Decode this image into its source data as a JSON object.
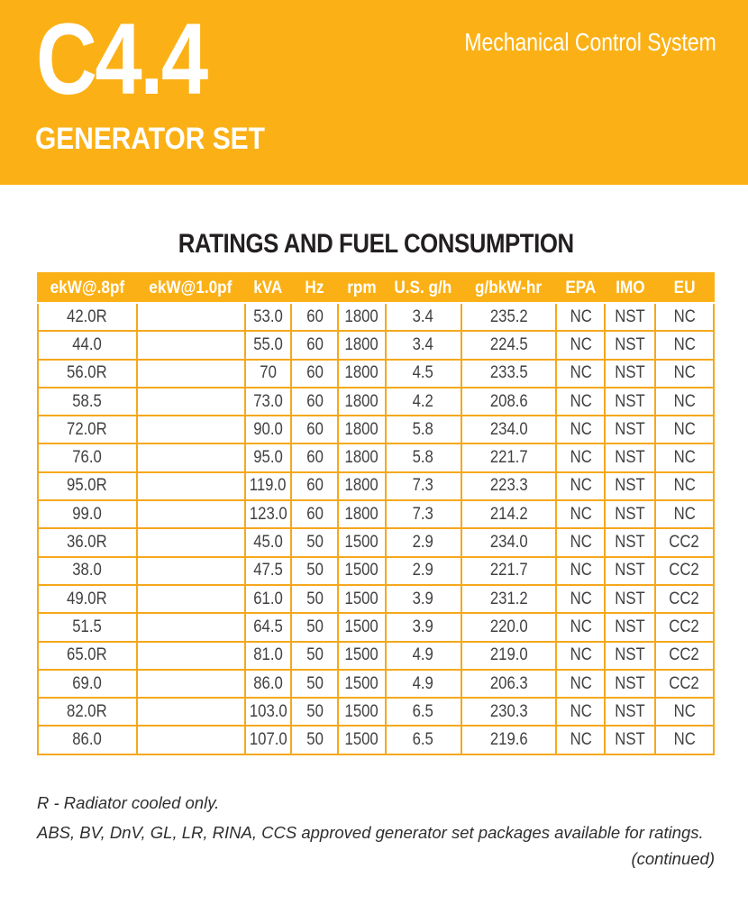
{
  "header": {
    "model": "C4.4",
    "subtitle": "GENERATOR SET",
    "tagline": "Mechanical Control System"
  },
  "section": {
    "title": "RATINGS AND FUEL CONSUMPTION"
  },
  "table": {
    "columns": [
      "ekW@.8pf",
      "ekW@1.0pf",
      "kVA",
      "Hz",
      "rpm",
      "U.S. g/h",
      "g/bkW-hr",
      "EPA",
      "IMO",
      "EU"
    ],
    "rows": [
      [
        "42.0R",
        "",
        "53.0",
        "60",
        "1800",
        "3.4",
        "235.2",
        "NC",
        "NST",
        "NC"
      ],
      [
        "44.0",
        "",
        "55.0",
        "60",
        "1800",
        "3.4",
        "224.5",
        "NC",
        "NST",
        "NC"
      ],
      [
        "56.0R",
        "",
        "70",
        "60",
        "1800",
        "4.5",
        "233.5",
        "NC",
        "NST",
        "NC"
      ],
      [
        "58.5",
        "",
        "73.0",
        "60",
        "1800",
        "4.2",
        "208.6",
        "NC",
        "NST",
        "NC"
      ],
      [
        "72.0R",
        "",
        "90.0",
        "60",
        "1800",
        "5.8",
        "234.0",
        "NC",
        "NST",
        "NC"
      ],
      [
        "76.0",
        "",
        "95.0",
        "60",
        "1800",
        "5.8",
        "221.7",
        "NC",
        "NST",
        "NC"
      ],
      [
        "95.0R",
        "",
        "119.0",
        "60",
        "1800",
        "7.3",
        "223.3",
        "NC",
        "NST",
        "NC"
      ],
      [
        "99.0",
        "",
        "123.0",
        "60",
        "1800",
        "7.3",
        "214.2",
        "NC",
        "NST",
        "NC"
      ],
      [
        "36.0R",
        "",
        "45.0",
        "50",
        "1500",
        "2.9",
        "234.0",
        "NC",
        "NST",
        "CC2"
      ],
      [
        "38.0",
        "",
        "47.5",
        "50",
        "1500",
        "2.9",
        "221.7",
        "NC",
        "NST",
        "CC2"
      ],
      [
        "49.0R",
        "",
        "61.0",
        "50",
        "1500",
        "3.9",
        "231.2",
        "NC",
        "NST",
        "CC2"
      ],
      [
        "51.5",
        "",
        "64.5",
        "50",
        "1500",
        "3.9",
        "220.0",
        "NC",
        "NST",
        "CC2"
      ],
      [
        "65.0R",
        "",
        "81.0",
        "50",
        "1500",
        "4.9",
        "219.0",
        "NC",
        "NST",
        "CC2"
      ],
      [
        "69.0",
        "",
        "86.0",
        "50",
        "1500",
        "4.9",
        "206.3",
        "NC",
        "NST",
        "CC2"
      ],
      [
        "82.0R",
        "",
        "103.0",
        "50",
        "1500",
        "6.5",
        "230.3",
        "NC",
        "NST",
        "NC"
      ],
      [
        "86.0",
        "",
        "107.0",
        "50",
        "1500",
        "6.5",
        "219.6",
        "NC",
        "NST",
        "NC"
      ]
    ]
  },
  "notes": {
    "radiator": "R - Radiator cooled only.",
    "societies": "ABS, BV, DnV, GL, LR, RINA, CCS approved generator set packages available for ratings.",
    "continued": "(continued)"
  },
  "colors": {
    "brand_yellow": "#FBB116",
    "table_border": "#F5A81C",
    "text_dark": "#414144",
    "title_black": "#231F20"
  }
}
